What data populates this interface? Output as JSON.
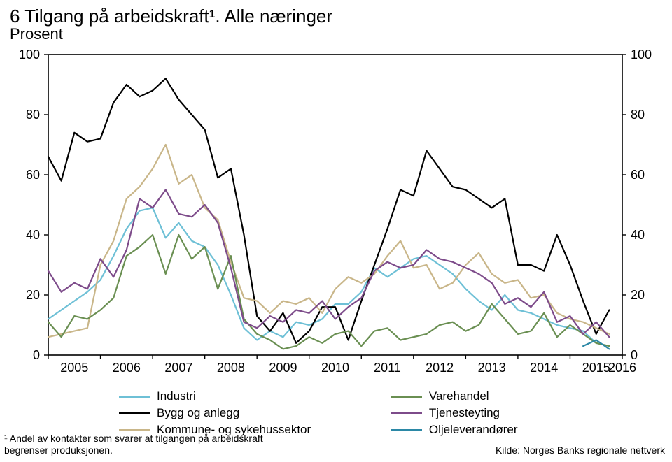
{
  "title": "6  Tilgang på arbeidskraft¹. Alle næringer",
  "subtitle": "Prosent",
  "chart": {
    "type": "line",
    "x_start_year": 2005,
    "x_end_year": 2016,
    "points_per_year": 4,
    "xlim": [
      0,
      44
    ],
    "ylim": [
      0,
      100
    ],
    "ytick_step": 20,
    "yticks": [
      0,
      20,
      40,
      60,
      80,
      100
    ],
    "xticks_years": [
      "2005",
      "2006",
      "2007",
      "2008",
      "2009",
      "2010",
      "2011",
      "2012",
      "2013",
      "2014",
      "2015",
      "2016"
    ],
    "background_color": "#ffffff",
    "axis_color": "#000000",
    "tick_color": "#000000",
    "label_fontsize": 18,
    "line_width": 2.2,
    "series": [
      {
        "name": "Industri",
        "color": "#6ec0d6",
        "values": [
          12,
          15,
          18,
          21,
          25,
          33,
          42,
          48,
          49,
          39,
          44,
          38,
          36,
          30,
          20,
          9,
          5,
          8,
          6,
          11,
          10,
          12,
          17,
          17,
          21,
          29,
          26,
          29,
          32,
          33,
          30,
          27,
          22,
          18,
          15,
          20,
          15,
          14,
          12,
          10,
          9,
          8,
          4,
          3
        ]
      },
      {
        "name": "Bygg og anlegg",
        "color": "#000000",
        "values": [
          66,
          58,
          74,
          71,
          72,
          84,
          90,
          86,
          88,
          92,
          85,
          80,
          75,
          59,
          62,
          40,
          13,
          8,
          14,
          4,
          8,
          16,
          16,
          5,
          18,
          30,
          42,
          55,
          53,
          68,
          62,
          56,
          55,
          52,
          49,
          52,
          30,
          30,
          28,
          40,
          30,
          18,
          7,
          15
        ]
      },
      {
        "name": "Kommune- og sykehussektor",
        "color": "#c9b689",
        "values": [
          6,
          7,
          8,
          9,
          30,
          38,
          52,
          56,
          62,
          70,
          57,
          60,
          49,
          45,
          31,
          19,
          18,
          14,
          18,
          17,
          19,
          14,
          22,
          26,
          24,
          27,
          33,
          38,
          29,
          30,
          22,
          24,
          30,
          34,
          27,
          24,
          25,
          19,
          20,
          14,
          12,
          11,
          9,
          7
        ]
      },
      {
        "name": "Varehandel",
        "color": "#6a8f52",
        "values": [
          11,
          6,
          13,
          12,
          15,
          19,
          33,
          36,
          40,
          27,
          40,
          32,
          36,
          22,
          33,
          12,
          7,
          5,
          2,
          3,
          6,
          4,
          7,
          8,
          3,
          8,
          9,
          5,
          6,
          7,
          10,
          11,
          8,
          10,
          17,
          12,
          7,
          8,
          14,
          6,
          10,
          7,
          4,
          3
        ]
      },
      {
        "name": "Tjenesteyting",
        "color": "#7d4b8a",
        "values": [
          28,
          21,
          24,
          22,
          32,
          26,
          35,
          52,
          49,
          55,
          47,
          46,
          50,
          44,
          29,
          11,
          9,
          13,
          11,
          15,
          14,
          18,
          12,
          16,
          19,
          28,
          31,
          29,
          30,
          35,
          32,
          31,
          29,
          27,
          24,
          17,
          19,
          16,
          21,
          11,
          13,
          7,
          11,
          6
        ]
      },
      {
        "name": "Oljeleverandører",
        "color": "#2b88a6",
        "values": [
          null,
          null,
          null,
          null,
          null,
          null,
          null,
          null,
          null,
          null,
          null,
          null,
          null,
          null,
          null,
          null,
          null,
          null,
          null,
          null,
          null,
          null,
          null,
          null,
          null,
          null,
          null,
          null,
          null,
          null,
          null,
          null,
          null,
          null,
          null,
          null,
          null,
          null,
          null,
          null,
          null,
          3,
          5,
          2
        ]
      }
    ]
  },
  "legend": {
    "col1": [
      {
        "label": "Industri",
        "color": "#6ec0d6"
      },
      {
        "label": "Bygg og anlegg",
        "color": "#000000"
      },
      {
        "label": "Kommune- og sykehussektor",
        "color": "#c9b689"
      }
    ],
    "col2": [
      {
        "label": "Varehandel",
        "color": "#6a8f52"
      },
      {
        "label": "Tjenesteyting",
        "color": "#7d4b8a"
      },
      {
        "label": "Oljeleverandører",
        "color": "#2b88a6"
      }
    ]
  },
  "footnote_line1": "¹ Andel av kontakter som svarer at tilgangen på arbeidskraft",
  "footnote_line2": "begrenser produksjonen.",
  "source": "Kilde: Norges Banks regionale nettverk"
}
